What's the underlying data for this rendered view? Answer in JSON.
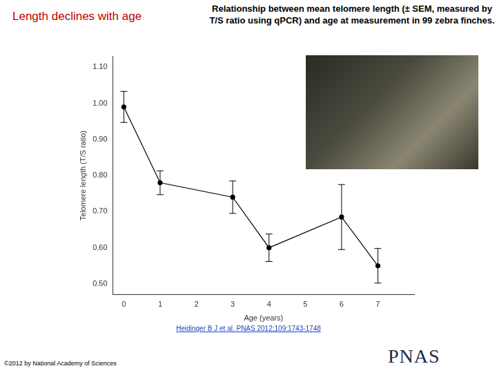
{
  "slide": {
    "heading": "Length declines with age",
    "citation": "Heidinger B J et al. PNAS 2012;109:1743-1748",
    "copyright": "©2012 by National Academy of Sciences",
    "logo": "PNAS"
  },
  "chart_data": {
    "type": "line",
    "title": "Relationship between mean telomere length (± SEM, measured by T/S ratio using qPCR) and age at measurement in 99 zebra finches.",
    "x_label": "Age (years)",
    "y_label": "Telomere length (T/S ratio)",
    "x": [
      0,
      1,
      3,
      4,
      6,
      7
    ],
    "values": [
      0.99,
      0.78,
      0.74,
      0.6,
      0.685,
      0.55
    ],
    "errors": [
      0.043,
      0.033,
      0.045,
      0.038,
      0.09,
      0.048
    ],
    "color": "#000000",
    "marker": "circle",
    "xlim": [
      -0.3,
      8
    ],
    "xticks": [
      0,
      1,
      2,
      3,
      4,
      5,
      6,
      7
    ],
    "ylim": [
      0.47,
      1.13
    ],
    "yticks": [
      {
        "value": 0.5,
        "label": "0.50"
      },
      {
        "value": 0.6,
        "label": "0.60"
      },
      {
        "value": 0.7,
        "label": "0.70"
      },
      {
        "value": 0.8,
        "label": "0.80"
      },
      {
        "value": 0.9,
        "label": "0.90"
      },
      {
        "value": 1.0,
        "label": "1.00"
      },
      {
        "value": 1.1,
        "label": "1.10"
      }
    ],
    "grid": false
  }
}
